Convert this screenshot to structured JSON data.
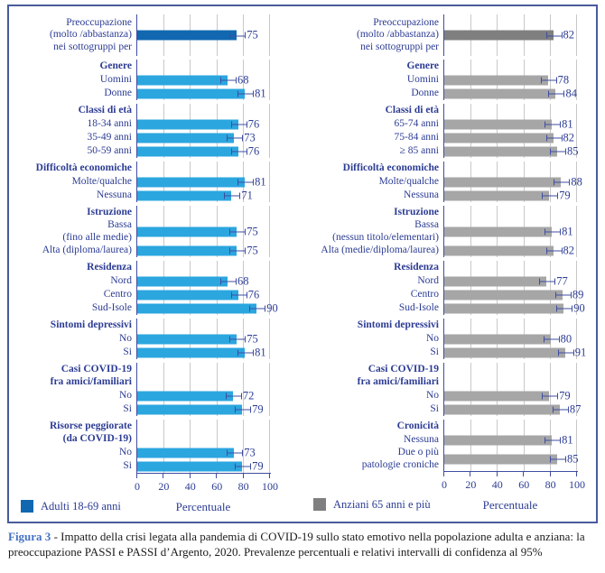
{
  "figure": {
    "caption_label": "Figura 3",
    "caption_text": " - Impatto della crisi legata alla pandemia di COVID-19 sullo stato emotivo nella popolazione adulta e anziana: la preoccupazione PASSI e PASSI d’Argento, 2020. Prevalenze percentuali e relativi intervalli di confidenza al 95%"
  },
  "colors": {
    "adult_bar": "#2BA6DF",
    "adult_highlight": "#1168B0",
    "elderly_bar": "#A6A6A6",
    "elderly_highlight": "#7F7F7F",
    "navy_text": "#2C3C94",
    "axis": "#3F4DA1",
    "gridline": "#C8C8C8",
    "box_border": "#4A5B9B",
    "caption_accent": "#4472C4"
  },
  "chart_data": [
    {
      "type": "bar",
      "orientation": "horizontal",
      "legend": "Adulti 18-69 anni",
      "xlabel": "Percentuale",
      "xlim": [
        0,
        100
      ],
      "xticks": [
        0,
        20,
        40,
        60,
        80,
        100
      ],
      "grid": true,
      "bar_color": "#2BA6DF",
      "highlight_color": "#1168B0",
      "rows": [
        {
          "kind": "bar",
          "label": "Preoccupazione\n(molto /abbastanza)\nnei sottogruppi per",
          "value": 75,
          "highlight": true,
          "lines": 3
        },
        {
          "kind": "header",
          "label": "Genere"
        },
        {
          "kind": "bar",
          "label": "Uomini",
          "value": 68
        },
        {
          "kind": "bar",
          "label": "Donne",
          "value": 81
        },
        {
          "kind": "header",
          "label": "Classi di età"
        },
        {
          "kind": "bar",
          "label": "18-34 anni",
          "value": 76
        },
        {
          "kind": "bar",
          "label": "35-49 anni",
          "value": 73
        },
        {
          "kind": "bar",
          "label": "50-59 anni",
          "value": 76
        },
        {
          "kind": "header",
          "label": "Difficoltà economiche"
        },
        {
          "kind": "bar",
          "label": "Molte/qualche",
          "value": 81
        },
        {
          "kind": "bar",
          "label": "Nessuna",
          "value": 71
        },
        {
          "kind": "header",
          "label": "Istruzione"
        },
        {
          "kind": "bar",
          "label": "Bassa\n(fino alle medie)",
          "value": 75,
          "lines": 2
        },
        {
          "kind": "bar",
          "label": "Alta (diploma/laurea)",
          "value": 75
        },
        {
          "kind": "header",
          "label": "Residenza"
        },
        {
          "kind": "bar",
          "label": "Nord",
          "value": 68
        },
        {
          "kind": "bar",
          "label": "Centro",
          "value": 76
        },
        {
          "kind": "bar",
          "label": "Sud-Isole",
          "value": 90
        },
        {
          "kind": "header",
          "label": "Sintomi depressivi"
        },
        {
          "kind": "bar",
          "label": "No",
          "value": 75
        },
        {
          "kind": "bar",
          "label": "Si",
          "value": 81
        },
        {
          "kind": "header",
          "label": "Casi COVID-19\nfra amici/familiari",
          "lines": 2
        },
        {
          "kind": "bar",
          "label": "No",
          "value": 72
        },
        {
          "kind": "bar",
          "label": "Si",
          "value": 79
        },
        {
          "kind": "header",
          "label": "Risorse peggiorate\n(da COVID-19)",
          "lines": 2
        },
        {
          "kind": "bar",
          "label": "No",
          "value": 73
        },
        {
          "kind": "bar",
          "label": "Si",
          "value": 79
        }
      ]
    },
    {
      "type": "bar",
      "orientation": "horizontal",
      "legend": "Anziani 65 anni e più",
      "xlabel": "Percentuale",
      "xlim": [
        0,
        100
      ],
      "xticks": [
        0,
        20,
        40,
        60,
        80,
        100
      ],
      "grid": true,
      "bar_color": "#A6A6A6",
      "highlight_color": "#7F7F7F",
      "rows": [
        {
          "kind": "bar",
          "label": "Preoccupazione\n(molto /abbastanza)\nnei sottogruppi per",
          "value": 82,
          "highlight": true,
          "lines": 3
        },
        {
          "kind": "header",
          "label": "Genere"
        },
        {
          "kind": "bar",
          "label": "Uomini",
          "value": 78
        },
        {
          "kind": "bar",
          "label": "Donne",
          "value": 84
        },
        {
          "kind": "header",
          "label": "Classi di età"
        },
        {
          "kind": "bar",
          "label": "65-74 anni",
          "value": 81
        },
        {
          "kind": "bar",
          "label": "75-84 anni",
          "value": 82
        },
        {
          "kind": "bar",
          "label": "≥ 85 anni",
          "value": 85
        },
        {
          "kind": "header",
          "label": "Difficoltà economiche"
        },
        {
          "kind": "bar",
          "label": "Molte/qualche",
          "value": 88
        },
        {
          "kind": "bar",
          "label": "Nessuna",
          "value": 79
        },
        {
          "kind": "header",
          "label": "Istruzione"
        },
        {
          "kind": "bar",
          "label": "Bassa\n(nessun titolo/elementari)",
          "value": 81,
          "lines": 2
        },
        {
          "kind": "bar",
          "label": "Alta (medie/diploma/laurea)",
          "value": 82
        },
        {
          "kind": "header",
          "label": "Residenza"
        },
        {
          "kind": "bar",
          "label": "Nord",
          "value": 77
        },
        {
          "kind": "bar",
          "label": "Centro",
          "value": 89
        },
        {
          "kind": "bar",
          "label": "Sud-Isole",
          "value": 90
        },
        {
          "kind": "header",
          "label": "Sintomi depressivi"
        },
        {
          "kind": "bar",
          "label": "No",
          "value": 80
        },
        {
          "kind": "bar",
          "label": "Si",
          "value": 91
        },
        {
          "kind": "header",
          "label": "Casi COVID-19\nfra amici/familiari",
          "lines": 2
        },
        {
          "kind": "bar",
          "label": "No",
          "value": 79
        },
        {
          "kind": "bar",
          "label": "Si",
          "value": 87
        },
        {
          "kind": "header",
          "label": "Cronicità"
        },
        {
          "kind": "bar",
          "label": "Nessuna",
          "value": 81
        },
        {
          "kind": "bar",
          "label": "Due o più\npatologie croniche",
          "value": 85,
          "lines": 2
        }
      ]
    }
  ]
}
